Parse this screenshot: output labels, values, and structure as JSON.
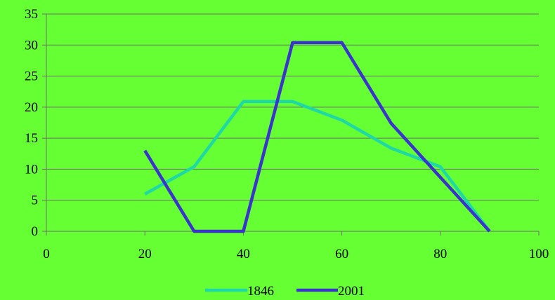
{
  "chart_data": {
    "type": "line",
    "title": "",
    "xlabel": "",
    "ylabel": "",
    "xlim": [
      0,
      100
    ],
    "ylim": [
      0,
      35
    ],
    "x_ticks": [
      0,
      20,
      40,
      60,
      80,
      100
    ],
    "y_ticks": [
      0,
      5,
      10,
      15,
      20,
      25,
      30,
      35
    ],
    "grid": "horizontal",
    "legend_position": "bottom",
    "background_color": "#66ff33",
    "series": [
      {
        "name": "1846",
        "color": "#1ed9a6",
        "x": [
          20,
          30,
          40,
          50,
          60,
          70,
          80,
          90
        ],
        "y": [
          6,
          10.4,
          20.9,
          20.9,
          17.9,
          13.4,
          10.4,
          0
        ]
      },
      {
        "name": "2001",
        "color": "#3a33cc",
        "x": [
          20,
          30,
          40,
          50,
          60,
          70,
          80,
          90
        ],
        "y": [
          13,
          0,
          0,
          30.4,
          30.4,
          17.4,
          8.7,
          0
        ]
      }
    ]
  }
}
